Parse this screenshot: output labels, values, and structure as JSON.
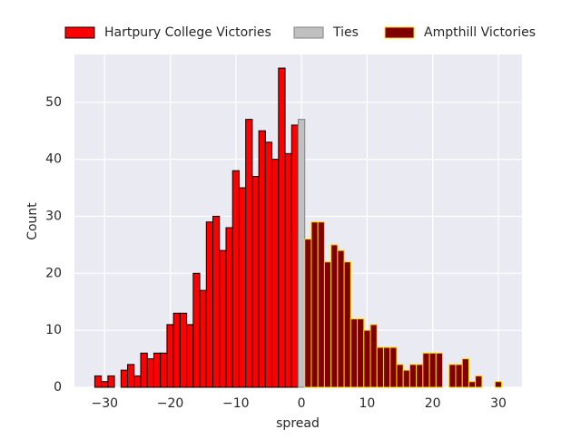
{
  "chart_data": {
    "type": "histogram",
    "x_label": "spread",
    "y_label": "Count",
    "xlim": [
      -34.6,
      33.6
    ],
    "ylim": [
      0,
      58.4
    ],
    "xticks": [
      {
        "value": -30,
        "label": "−30"
      },
      {
        "value": -20,
        "label": "−20"
      },
      {
        "value": -10,
        "label": "−10"
      },
      0,
      10,
      20,
      30
    ],
    "yticks": [
      0,
      10,
      20,
      30,
      40,
      50
    ],
    "grid": true,
    "background": "#eaeaf2",
    "legend": "top",
    "series": [
      {
        "name": "Hartpury College Victories",
        "color": "#ff0000",
        "edgecolor": "#000000",
        "bins": [
          -31.5,
          -30.5,
          -29.5,
          -28.5,
          -27.5,
          -26.5,
          -25.5,
          -24.5,
          -23.5,
          -22.5,
          -21.5,
          -20.5,
          -19.5,
          -18.5,
          -17.5,
          -16.5,
          -15.5,
          -14.5,
          -13.5,
          -12.5,
          -11.5,
          -10.5,
          -9.5,
          -8.5,
          -7.5,
          -6.5,
          -5.5,
          -4.5,
          -3.5,
          -2.5,
          -1.5,
          -0.5
        ],
        "values": [
          2,
          1,
          2,
          0,
          3,
          4,
          2,
          6,
          5,
          6,
          6,
          11,
          13,
          13,
          11,
          20,
          17,
          29,
          30,
          24,
          28,
          38,
          35,
          47,
          37,
          45,
          43,
          40,
          56,
          41,
          46
        ]
      },
      {
        "name": "Ties",
        "color": "#c0c0c0",
        "edgecolor": "#808080",
        "bins": [
          -0.5,
          0.5
        ],
        "values": [
          47
        ]
      },
      {
        "name": "Ampthill Victories",
        "color": "#800000",
        "edgecolor": "#ffd700",
        "bins": [
          0.5,
          1.5,
          2.5,
          3.5,
          4.5,
          5.5,
          6.5,
          7.5,
          8.5,
          9.5,
          10.5,
          11.5,
          12.5,
          13.5,
          14.5,
          15.5,
          16.5,
          17.5,
          18.5,
          19.5,
          20.5,
          21.5,
          22.5,
          23.5,
          24.5,
          25.5,
          26.5,
          27.5,
          28.5,
          29.5,
          30.5
        ],
        "values": [
          26,
          29,
          29,
          22,
          25,
          24,
          22,
          12,
          12,
          10,
          11,
          7,
          7,
          7,
          4,
          3,
          4,
          4,
          6,
          6,
          6,
          0,
          4,
          4,
          5,
          1,
          2,
          0,
          0,
          1
        ]
      }
    ]
  }
}
